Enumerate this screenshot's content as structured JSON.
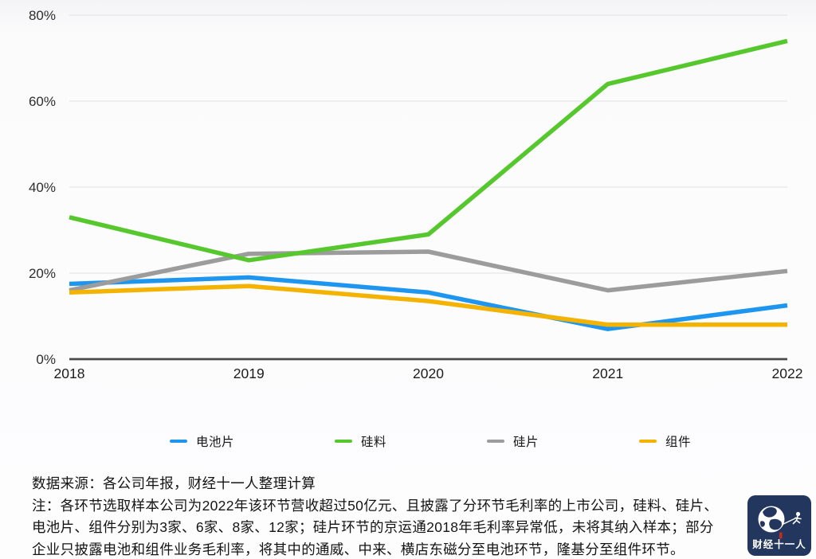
{
  "chart_data": {
    "type": "line",
    "title": "",
    "xlabel": "",
    "ylabel": "",
    "x": [
      "2018",
      "2019",
      "2020",
      "2021",
      "2022"
    ],
    "y_ticks": [
      {
        "label": "80%",
        "value": 80
      },
      {
        "label": "60%",
        "value": 60
      },
      {
        "label": "40%",
        "value": 40
      },
      {
        "label": "20%",
        "value": 20
      },
      {
        "label": "0%",
        "value": 0
      }
    ],
    "ylim": [
      0,
      80
    ],
    "grid": "horizontal",
    "legend_position": "bottom",
    "series": [
      {
        "name": "电池片",
        "color": "#1E96F0",
        "values": [
          17.5,
          19,
          15.5,
          7,
          12.5
        ]
      },
      {
        "name": "硅料",
        "color": "#56C82E",
        "values": [
          33,
          23,
          29,
          64,
          74
        ]
      },
      {
        "name": "硅片",
        "color": "#9C9C9C",
        "values": [
          16,
          24.5,
          25,
          16,
          20.5
        ]
      },
      {
        "name": "组件",
        "color": "#F3B300",
        "values": [
          15.5,
          17,
          13.5,
          8,
          8
        ]
      }
    ]
  },
  "colors": {
    "gridline": "#E0E0E0",
    "zero_axis": "#4A4A4A",
    "tick_text": "#2E2E2E"
  },
  "footer": {
    "source": "数据来源：各公司年报，财经十一人整理计算",
    "note_lines": [
      "注：各环节选取样本公司为2022年该环节营收超过50亿元、且披露了分环节毛利率的上市公司，硅料、硅片、",
      "电池片、组件分别为3家、6家、8家、12家；硅片环节的京运通2018年毛利率异常低，未将其纳入样本；部分",
      "企业只披露电池和组件业务毛利率，将其中的通威、中来、横店东磁分至电池环节，隆基分至组件环节。"
    ]
  },
  "logo": {
    "text": "财经十一人",
    "bg_color": "#23365E",
    "accent_color": "#C8281E"
  }
}
